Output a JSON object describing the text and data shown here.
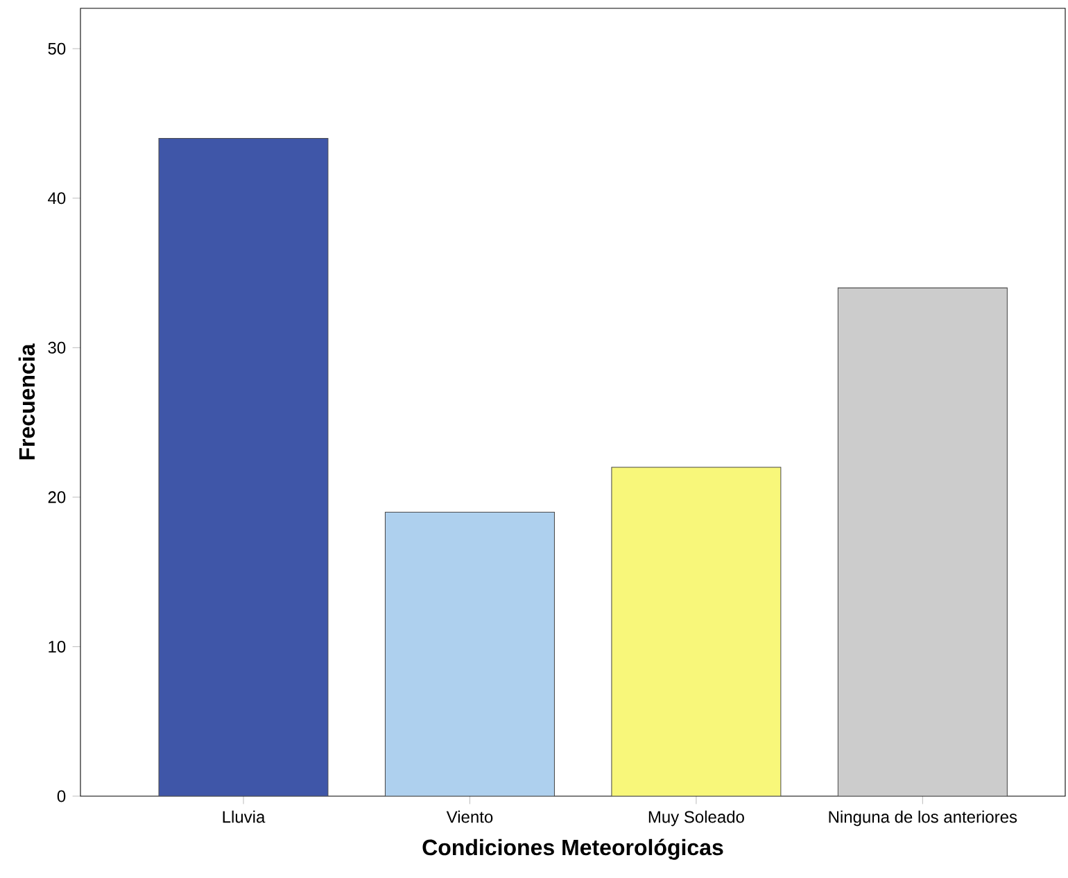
{
  "chart_data": {
    "type": "bar",
    "xlabel": "Condiciones Meteorológicas",
    "ylabel": "Frecuencia",
    "categories": [
      "Lluvia",
      "Viento",
      "Muy Soleado",
      "Ninguna de los anteriores"
    ],
    "values": [
      44,
      19,
      22,
      34
    ],
    "colors": [
      "#3f56a8",
      "#aed0ee",
      "#f8f77a",
      "#cccccc"
    ],
    "ylim": [
      0,
      52.7
    ],
    "yticks": [
      0,
      10,
      20,
      30,
      40,
      50
    ]
  }
}
